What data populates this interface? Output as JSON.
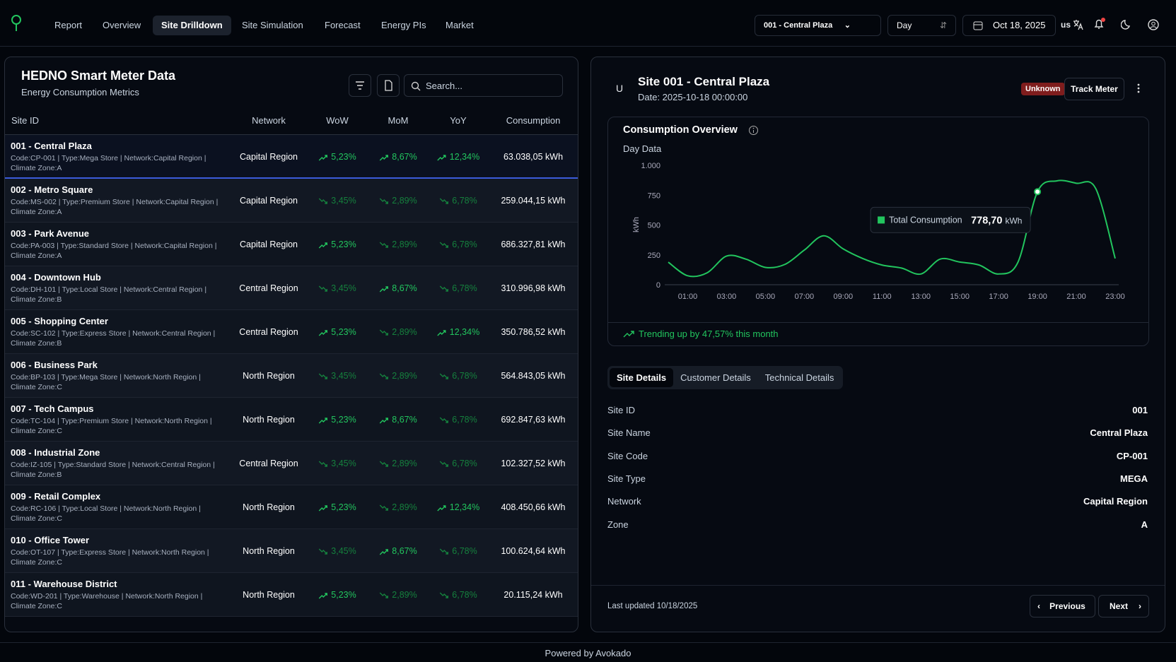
{
  "nav": {
    "items": [
      "Report",
      "Overview",
      "Site Drilldown",
      "Site Simulation",
      "Forecast",
      "Energy PIs",
      "Market"
    ],
    "active": 2
  },
  "controls": {
    "site": "001 - Central Plaza",
    "period": "Day",
    "date": "Oct 18, 2025",
    "language": "us"
  },
  "table_panel": {
    "title": "HEDNO Smart Meter Data",
    "subtitle": "Energy Consumption Metrics",
    "search_placeholder": "Search...",
    "columns": [
      "Site ID",
      "Network",
      "WoW",
      "MoM",
      "YoY",
      "Consumption"
    ],
    "selected": 0,
    "rows": [
      {
        "site": "001 - Central Plaza",
        "info": "Code:CP-001 | Type:Mega Store | Network:Capital Region | Climate Zone:A",
        "network": "Capital Region",
        "wow": {
          "text": "5,23%",
          "trend": "up"
        },
        "mom": {
          "text": "8,67%",
          "trend": "up"
        },
        "yoy": {
          "text": "12,34%",
          "trend": "up"
        },
        "consumption": "63.038,05 kWh"
      },
      {
        "site": "002 - Metro Square",
        "info": "Code:MS-002 | Type:Premium Store | Network:Capital Region | Climate Zone:A",
        "network": "Capital Region",
        "wow": {
          "text": "3,45%",
          "trend": "down"
        },
        "mom": {
          "text": "2,89%",
          "trend": "down"
        },
        "yoy": {
          "text": "6,78%",
          "trend": "down"
        },
        "consumption": "259.044,15 kWh"
      },
      {
        "site": "003 - Park Avenue",
        "info": "Code:PA-003 | Type:Standard Store | Network:Capital Region | Climate Zone:A",
        "network": "Capital Region",
        "wow": {
          "text": "5,23%",
          "trend": "up"
        },
        "mom": {
          "text": "2,89%",
          "trend": "down"
        },
        "yoy": {
          "text": "6,78%",
          "trend": "down"
        },
        "consumption": "686.327,81 kWh"
      },
      {
        "site": "004 - Downtown Hub",
        "info": "Code:DH-101 | Type:Local Store | Network:Central Region | Climate Zone:B",
        "network": "Central Region",
        "wow": {
          "text": "3,45%",
          "trend": "down"
        },
        "mom": {
          "text": "8,67%",
          "trend": "up"
        },
        "yoy": {
          "text": "6,78%",
          "trend": "down"
        },
        "consumption": "310.996,98 kWh"
      },
      {
        "site": "005 - Shopping Center",
        "info": "Code:SC-102 | Type:Express Store | Network:Central Region | Climate Zone:B",
        "network": "Central Region",
        "wow": {
          "text": "5,23%",
          "trend": "up"
        },
        "mom": {
          "text": "2,89%",
          "trend": "down"
        },
        "yoy": {
          "text": "12,34%",
          "trend": "up"
        },
        "consumption": "350.786,52 kWh"
      },
      {
        "site": "006 - Business Park",
        "info": "Code:BP-103 | Type:Mega Store | Network:North Region | Climate Zone:C",
        "network": "North Region",
        "wow": {
          "text": "3,45%",
          "trend": "down"
        },
        "mom": {
          "text": "2,89%",
          "trend": "down"
        },
        "yoy": {
          "text": "6,78%",
          "trend": "down"
        },
        "consumption": "564.843,05 kWh"
      },
      {
        "site": "007 - Tech Campus",
        "info": "Code:TC-104 | Type:Premium Store | Network:North Region | Climate Zone:C",
        "network": "North Region",
        "wow": {
          "text": "5,23%",
          "trend": "up"
        },
        "mom": {
          "text": "8,67%",
          "trend": "up"
        },
        "yoy": {
          "text": "6,78%",
          "trend": "down"
        },
        "consumption": "692.847,63 kWh"
      },
      {
        "site": "008 - Industrial Zone",
        "info": "Code:IZ-105 | Type:Standard Store | Network:Central Region | Climate Zone:B",
        "network": "Central Region",
        "wow": {
          "text": "3,45%",
          "trend": "down"
        },
        "mom": {
          "text": "2,89%",
          "trend": "down"
        },
        "yoy": {
          "text": "6,78%",
          "trend": "down"
        },
        "consumption": "102.327,52 kWh"
      },
      {
        "site": "009 - Retail Complex",
        "info": "Code:RC-106 | Type:Local Store | Network:North Region | Climate Zone:C",
        "network": "North Region",
        "wow": {
          "text": "5,23%",
          "trend": "up"
        },
        "mom": {
          "text": "2,89%",
          "trend": "down"
        },
        "yoy": {
          "text": "12,34%",
          "trend": "up"
        },
        "consumption": "408.450,66 kWh"
      },
      {
        "site": "010 - Office Tower",
        "info": "Code:OT-107 | Type:Express Store | Network:North Region | Climate Zone:C",
        "network": "North Region",
        "wow": {
          "text": "3,45%",
          "trend": "down"
        },
        "mom": {
          "text": "8,67%",
          "trend": "up"
        },
        "yoy": {
          "text": "6,78%",
          "trend": "down"
        },
        "consumption": "100.624,64 kWh"
      },
      {
        "site": "011 - Warehouse District",
        "info": "Code:WD-201 | Type:Warehouse | Network:North Region | Climate Zone:C",
        "network": "North Region",
        "wow": {
          "text": "5,23%",
          "trend": "up"
        },
        "mom": {
          "text": "2,89%",
          "trend": "down"
        },
        "yoy": {
          "text": "6,78%",
          "trend": "down"
        },
        "consumption": "20.115,24 kWh"
      }
    ]
  },
  "detail": {
    "initial": "U",
    "title": "Site 001 - Central Plaza",
    "date": "Date: 2025-10-18 00:00:00",
    "status": "Unknown",
    "action": "Track Meter",
    "tabs": [
      "Site Details",
      "Customer Details",
      "Technical Details"
    ],
    "active_tab": 0,
    "fields": [
      {
        "label": "Site ID",
        "value": "001"
      },
      {
        "label": "Site Name",
        "value": "Central Plaza"
      },
      {
        "label": "Site Code",
        "value": "CP-001"
      },
      {
        "label": "Site Type",
        "value": "MEGA"
      },
      {
        "label": "Network",
        "value": "Capital Region"
      },
      {
        "label": "Zone",
        "value": "A"
      }
    ],
    "last_updated": "Last updated 10/18/2025",
    "previous": "Previous",
    "next": "Next"
  },
  "chart_data": {
    "type": "line",
    "title": "Consumption Overview",
    "subtitle": "Day Data",
    "y_label": "kWh",
    "categories": [
      null,
      "01:00",
      null,
      "03:00",
      null,
      "05:00",
      null,
      "07:00",
      null,
      "09:00",
      null,
      "11:00",
      null,
      "13:00",
      null,
      "15:00",
      null,
      "17:00",
      null,
      "19:00",
      null,
      "21:00",
      null,
      "23:00"
    ],
    "series": [
      {
        "name": "Total Consumption",
        "color": "#22c55e",
        "values": [
          189,
          75,
          100,
          240,
          214,
          145,
          170,
          290,
          410,
          300,
          220,
          165,
          140,
          90,
          215,
          190,
          165,
          90,
          190,
          778.7,
          870,
          850,
          805,
          220
        ]
      }
    ],
    "ylim": [
      0,
      1000
    ],
    "yticks": [
      0,
      250,
      500,
      750,
      {
        "value": 1000,
        "label": "1.000"
      }
    ],
    "grid": false,
    "tooltip": {
      "value": 778.7,
      "label": "778,70",
      "unit": "kWh"
    },
    "note": "Trending up by 47,57% this month"
  },
  "footer": "Powered by Avokado"
}
